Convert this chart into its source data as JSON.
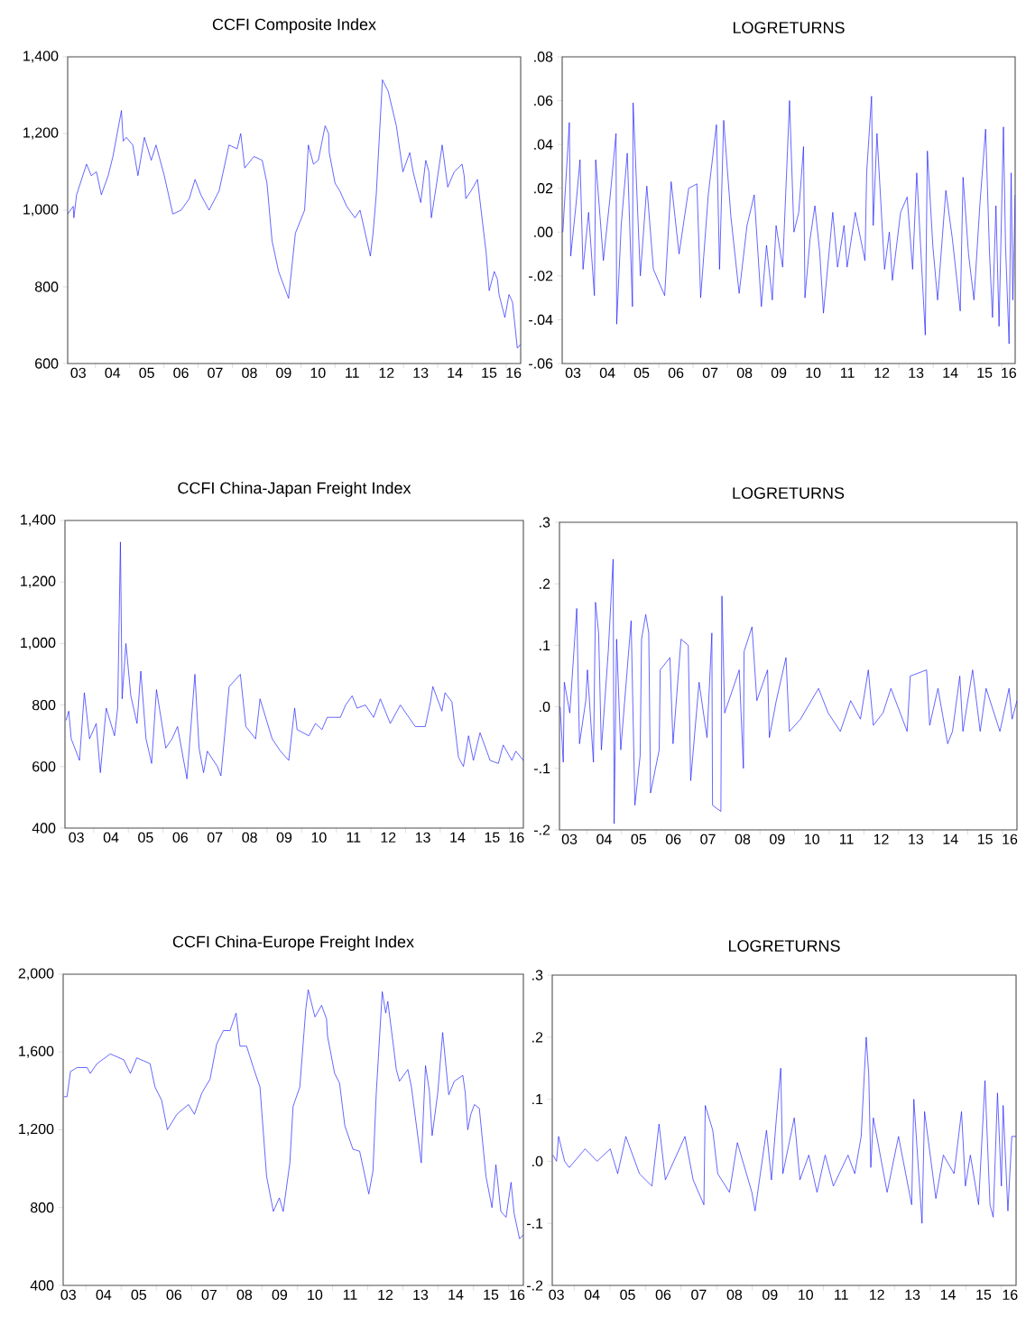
{
  "chart_data": [
    {
      "type": "line",
      "title": "CCFI Composite Index",
      "color": "#1a1aff",
      "xlim": [
        "2003-03-11",
        "2016-06-03"
      ],
      "ylim": [
        600,
        1400
      ],
      "yticks": [
        600,
        800,
        {
          "value": 1000,
          "label": "1,000"
        },
        {
          "value": 1200,
          "label": "1,200"
        },
        {
          "value": 1400,
          "label": "1,400"
        }
      ],
      "xticks": [
        {
          "value": "2003-07-02",
          "label": "03"
        },
        {
          "value": "2004-07-02",
          "label": "04"
        },
        {
          "value": "2005-07-02",
          "label": "05"
        },
        {
          "value": "2006-07-02",
          "label": "06"
        },
        {
          "value": "2007-07-02",
          "label": "07"
        },
        {
          "value": "2008-07-02",
          "label": "08"
        },
        {
          "value": "2009-07-02",
          "label": "09"
        },
        {
          "value": "2010-07-02",
          "label": "10"
        },
        {
          "value": "2011-07-02",
          "label": "11"
        },
        {
          "value": "2012-07-02",
          "label": "12"
        },
        {
          "value": "2013-07-02",
          "label": "13"
        },
        {
          "value": "2014-07-02",
          "label": "14"
        },
        {
          "value": "2015-07-02",
          "label": "15"
        },
        {
          "value": "2016-03-19",
          "label": "16"
        },
        {
          "value": "2004-01-01",
          "label": null
        },
        {
          "value": "2005-01-01",
          "label": null
        },
        {
          "value": "2006-01-01",
          "label": null
        },
        {
          "value": "2007-01-01",
          "label": null
        },
        {
          "value": "2008-01-01",
          "label": null
        },
        {
          "value": "2009-01-01",
          "label": null
        },
        {
          "value": "2010-01-01",
          "label": null
        },
        {
          "value": "2011-01-01",
          "label": null
        },
        {
          "value": "2012-01-01",
          "label": null
        },
        {
          "value": "2013-01-01",
          "label": null
        },
        {
          "value": "2014-01-01",
          "label": null
        },
        {
          "value": "2015-01-01",
          "label": null
        },
        {
          "value": "2016-01-01",
          "label": null
        }
      ],
      "x": [
        "2003-03-11",
        "2003-05-09",
        "2003-05-16",
        "2003-06-14",
        "2003-09-28",
        "2003-11-18",
        "2004-01-12",
        "2004-03-04",
        "2004-05-16",
        "2004-07-06",
        "2004-10-05",
        "2004-10-24",
        "2004-11-26",
        "2005-02-03",
        "2005-03-30",
        "2005-06-07",
        "2005-08-19",
        "2005-10-09",
        "2006-01-05",
        "2006-04-06",
        "2006-07-03",
        "2006-09-28",
        "2006-11-29",
        "2007-01-30",
        "2007-04-28",
        "2007-08-12",
        "2007-11-26",
        "2008-02-21",
        "2008-03-30",
        "2008-05-12",
        "2008-08-19",
        "2008-11-15",
        "2009-01-05",
        "2009-02-28",
        "2009-05-09",
        "2009-08-23",
        "2009-11-04",
        "2010-02-10",
        "2010-03-22",
        "2010-05-16",
        "2010-07-06",
        "2010-09-17",
        "2010-10-24",
        "2010-10-31",
        "2011-01-01",
        "2011-02-21",
        "2011-05-05",
        "2011-08-01",
        "2011-09-24",
        "2011-10-31",
        "2012-01-12",
        "2012-02-10",
        "2012-03-15",
        "2012-05-20",
        "2012-07-21",
        "2012-10-16",
        "2012-12-25",
        "2013-03-08",
        "2013-04-13",
        "2013-07-03",
        "2013-08-26",
        "2013-09-28",
        "2013-10-24",
        "2013-12-14",
        "2014-02-17",
        "2014-04-17",
        "2014-06-25",
        "2014-09-17",
        "2014-10-09",
        "2014-10-27",
        "2014-12-21",
        "2015-02-28",
        "2015-05-31",
        "2015-07-03",
        "2015-08-26",
        "2015-09-28",
        "2015-10-16",
        "2015-12-17",
        "2016-01-30",
        "2016-03-08",
        "2016-04-28",
        "2016-06-03"
      ],
      "values": [
        990,
        1010,
        980,
        1040,
        1120,
        1090,
        1100,
        1040,
        1090,
        1140,
        1260,
        1180,
        1190,
        1170,
        1090,
        1190,
        1130,
        1170,
        1090,
        990,
        1000,
        1030,
        1080,
        1040,
        1000,
        1050,
        1170,
        1160,
        1200,
        1110,
        1140,
        1130,
        1070,
        920,
        840,
        770,
        940,
        1000,
        1170,
        1120,
        1130,
        1220,
        1200,
        1150,
        1070,
        1050,
        1010,
        980,
        1000,
        960,
        880,
        940,
        1040,
        1340,
        1310,
        1220,
        1100,
        1150,
        1100,
        1020,
        1130,
        1100,
        980,
        1060,
        1170,
        1060,
        1100,
        1120,
        1090,
        1030,
        1050,
        1080,
        890,
        790,
        840,
        820,
        780,
        720,
        780,
        760,
        640,
        650
      ]
    },
    {
      "type": "line",
      "title": "LOGRETURNS",
      "color": "#1a1aff",
      "xlim": [
        "2003-03-08",
        "2016-05-23"
      ],
      "ylim": [
        -0.06,
        0.08
      ],
      "yticks": [
        {
          "value": -0.06,
          "label": "-.06"
        },
        {
          "value": -0.04,
          "label": "-.04"
        },
        {
          "value": -0.02,
          "label": "-.02"
        },
        {
          "value": 0,
          "label": ".00"
        },
        {
          "value": 0.02,
          "label": ".02"
        },
        {
          "value": 0.04,
          "label": ".04"
        },
        {
          "value": 0.06,
          "label": ".06"
        },
        {
          "value": 0.08,
          "label": ".08"
        }
      ],
      "xticks": [
        {
          "value": "2003-07-02",
          "label": "03"
        },
        {
          "value": "2004-07-02",
          "label": "04"
        },
        {
          "value": "2005-07-02",
          "label": "05"
        },
        {
          "value": "2006-07-02",
          "label": "06"
        },
        {
          "value": "2007-07-02",
          "label": "07"
        },
        {
          "value": "2008-07-02",
          "label": "08"
        },
        {
          "value": "2009-07-02",
          "label": "09"
        },
        {
          "value": "2010-07-02",
          "label": "10"
        },
        {
          "value": "2011-07-02",
          "label": "11"
        },
        {
          "value": "2012-07-02",
          "label": "12"
        },
        {
          "value": "2013-07-02",
          "label": "13"
        },
        {
          "value": "2014-07-02",
          "label": "14"
        },
        {
          "value": "2015-07-02",
          "label": "15"
        },
        {
          "value": "2016-03-15",
          "label": "16"
        },
        {
          "value": "2004-01-01",
          "label": null
        },
        {
          "value": "2005-01-01",
          "label": null
        },
        {
          "value": "2006-01-01",
          "label": null
        },
        {
          "value": "2007-01-01",
          "label": null
        },
        {
          "value": "2008-01-01",
          "label": null
        },
        {
          "value": "2009-01-01",
          "label": null
        },
        {
          "value": "2010-01-01",
          "label": null
        },
        {
          "value": "2011-01-01",
          "label": null
        },
        {
          "value": "2012-01-01",
          "label": null
        },
        {
          "value": "2013-01-01",
          "label": null
        },
        {
          "value": "2014-01-01",
          "label": null
        },
        {
          "value": "2015-01-01",
          "label": null
        },
        {
          "value": "2016-01-01",
          "label": null
        }
      ],
      "x": [
        "2003-03-15",
        "2003-04-17",
        "2003-05-23",
        "2003-06-07",
        "2003-08-01",
        "2003-09-14",
        "2003-10-16",
        "2003-12-14",
        "2004-02-14",
        "2004-02-28",
        "2004-05-20",
        "2004-07-28",
        "2004-10-02",
        "2004-10-09",
        "2004-11-26",
        "2005-01-30",
        "2005-03-26",
        "2005-04-02",
        "2005-06-18",
        "2005-08-26",
        "2005-11-04",
        "2006-03-04",
        "2006-05-12",
        "2006-08-04",
        "2006-11-15",
        "2007-02-10",
        "2007-03-22",
        "2007-06-11",
        "2007-09-06",
        "2007-10-09",
        "2007-11-22",
        "2008-02-07",
        "2008-05-05",
        "2008-07-28",
        "2008-10-13",
        "2008-12-28",
        "2009-02-21",
        "2009-04-24",
        "2009-06-03",
        "2009-08-12",
        "2009-10-02",
        "2009-10-24",
        "2009-12-10",
        "2010-01-30",
        "2010-03-22",
        "2010-04-06",
        "2010-05-31",
        "2010-07-21",
        "2010-09-10",
        "2010-10-20",
        "2011-01-27",
        "2011-03-19",
        "2011-05-27",
        "2011-06-29",
        "2011-09-24",
        "2012-01-05",
        "2012-01-23",
        "2012-03-15",
        "2012-04-02",
        "2012-05-12",
        "2012-08-01",
        "2012-09-21",
        "2012-10-24",
        "2013-01-19",
        "2013-03-30",
        "2013-05-27",
        "2013-07-10",
        "2013-10-09",
        "2013-10-31",
        "2013-12-28",
        "2014-02-17",
        "2014-05-16",
        "2014-07-24",
        "2014-10-16",
        "2014-11-15",
        "2015-01-12",
        "2015-03-11",
        "2015-05-12",
        "2015-07-13",
        "2015-08-23",
        "2015-09-24",
        "2015-10-31",
        "2015-12-03",
        "2016-01-19",
        "2016-02-10",
        "2016-03-19",
        "2016-04-10",
        "2016-04-28",
        "2016-05-23"
      ],
      "values": [
        0.0,
        0.024,
        0.05,
        -0.011,
        0.012,
        0.033,
        -0.017,
        0.009,
        -0.029,
        0.033,
        -0.013,
        0.015,
        0.045,
        -0.042,
        0.003,
        0.036,
        -0.034,
        0.059,
        -0.02,
        0.021,
        -0.017,
        -0.029,
        0.023,
        -0.01,
        0.02,
        0.022,
        -0.03,
        0.017,
        0.049,
        -0.017,
        0.051,
        0.007,
        -0.028,
        0.003,
        0.017,
        -0.034,
        -0.006,
        -0.031,
        0.003,
        -0.016,
        0.037,
        0.06,
        0.0,
        0.009,
        0.039,
        -0.03,
        -0.003,
        0.012,
        -0.009,
        -0.037,
        0.009,
        -0.016,
        0.003,
        -0.016,
        0.009,
        -0.013,
        0.027,
        0.062,
        0.003,
        0.045,
        -0.017,
        0.0,
        -0.022,
        0.009,
        0.016,
        -0.017,
        0.027,
        -0.047,
        0.037,
        -0.006,
        -0.031,
        0.019,
        -0.003,
        -0.036,
        0.025,
        -0.01,
        -0.031,
        0.012,
        0.047,
        -0.009,
        -0.039,
        0.012,
        -0.043,
        0.048,
        -0.006,
        -0.051,
        0.027,
        -0.031,
        0.017
      ]
    },
    {
      "type": "line",
      "title": "CCFI China-Japan Freight Index",
      "color": "#1a1aff",
      "xlim": [
        "2003-03-04",
        "2016-05-27"
      ],
      "ylim": [
        400,
        1400
      ],
      "yticks": [
        400,
        600,
        800,
        {
          "value": 1000,
          "label": "1,000"
        },
        {
          "value": 1200,
          "label": "1,200"
        },
        {
          "value": 1400,
          "label": "1,400"
        }
      ],
      "xticks": [
        {
          "value": "2003-07-02",
          "label": "03"
        },
        {
          "value": "2004-07-02",
          "label": "04"
        },
        {
          "value": "2005-07-02",
          "label": "05"
        },
        {
          "value": "2006-07-02",
          "label": "06"
        },
        {
          "value": "2007-07-02",
          "label": "07"
        },
        {
          "value": "2008-07-02",
          "label": "08"
        },
        {
          "value": "2009-07-02",
          "label": "09"
        },
        {
          "value": "2010-07-02",
          "label": "10"
        },
        {
          "value": "2011-07-02",
          "label": "11"
        },
        {
          "value": "2012-07-02",
          "label": "12"
        },
        {
          "value": "2013-07-02",
          "label": "13"
        },
        {
          "value": "2014-07-02",
          "label": "14"
        },
        {
          "value": "2015-07-02",
          "label": "15"
        },
        {
          "value": "2016-03-15",
          "label": "16"
        },
        {
          "value": "2004-01-01",
          "label": null
        },
        {
          "value": "2005-01-01",
          "label": null
        },
        {
          "value": "2006-01-01",
          "label": null
        },
        {
          "value": "2007-01-01",
          "label": null
        },
        {
          "value": "2008-01-01",
          "label": null
        },
        {
          "value": "2009-01-01",
          "label": null
        },
        {
          "value": "2010-01-01",
          "label": null
        },
        {
          "value": "2011-01-01",
          "label": null
        },
        {
          "value": "2012-01-01",
          "label": null
        },
        {
          "value": "2013-01-01",
          "label": null
        },
        {
          "value": "2014-01-01",
          "label": null
        },
        {
          "value": "2015-01-01",
          "label": null
        },
        {
          "value": "2016-01-01",
          "label": null
        }
      ],
      "x": [
        "2003-03-15",
        "2003-04-13",
        "2003-05-09",
        "2003-08-04",
        "2003-09-24",
        "2003-11-18",
        "2004-01-27",
        "2004-03-11",
        "2004-05-12",
        "2004-08-08",
        "2004-09-10",
        "2004-10-09",
        "2004-10-27",
        "2004-12-06",
        "2005-01-27",
        "2005-04-02",
        "2005-05-12",
        "2005-07-06",
        "2005-09-03",
        "2005-10-24",
        "2006-01-30",
        "2006-04-06",
        "2006-06-03",
        "2006-09-10",
        "2006-12-03",
        "2007-01-16",
        "2007-03-04",
        "2007-04-13",
        "2007-07-28",
        "2007-09-03",
        "2007-11-29",
        "2008-03-26",
        "2008-05-23",
        "2008-09-03",
        "2008-10-20",
        "2009-02-25",
        "2009-05-23",
        "2009-08-19",
        "2009-10-20",
        "2009-11-15",
        "2010-03-19",
        "2010-05-27",
        "2010-08-04",
        "2010-09-28",
        "2011-02-14",
        "2011-04-10",
        "2011-06-18",
        "2011-08-08",
        "2011-11-04",
        "2012-01-30",
        "2012-04-10",
        "2012-07-24",
        "2012-11-07",
        "2013-04-13",
        "2013-07-28",
        "2013-09-21",
        "2013-10-16",
        "2014-01-19",
        "2014-02-21",
        "2014-05-05",
        "2014-07-13",
        "2014-09-03",
        "2014-10-27",
        "2014-12-17",
        "2015-02-25",
        "2015-06-11",
        "2015-09-06",
        "2015-10-27",
        "2016-01-27",
        "2016-03-08",
        "2016-05-27"
      ],
      "values": [
        750,
        780,
        690,
        620,
        840,
        690,
        740,
        580,
        790,
        700,
        790,
        1330,
        820,
        1000,
        830,
        740,
        910,
        690,
        610,
        850,
        660,
        690,
        730,
        560,
        900,
        660,
        580,
        650,
        600,
        570,
        860,
        900,
        730,
        690,
        820,
        690,
        650,
        620,
        790,
        720,
        700,
        740,
        720,
        760,
        760,
        800,
        830,
        790,
        800,
        760,
        820,
        740,
        800,
        730,
        730,
        810,
        860,
        780,
        840,
        810,
        630,
        600,
        700,
        620,
        710,
        620,
        610,
        670,
        620,
        650,
        620
      ]
    },
    {
      "type": "line",
      "title": "LOGRETURNS",
      "color": "#1a1aff",
      "xlim": [
        "2003-03-19",
        "2016-06-03"
      ],
      "ylim": [
        -0.2,
        0.3
      ],
      "yticks": [
        {
          "value": -0.2,
          "label": "-.2"
        },
        {
          "value": -0.1,
          "label": "-.1"
        },
        {
          "value": 0,
          "label": ".0"
        },
        {
          "value": 0.1,
          "label": ".1"
        },
        {
          "value": 0.2,
          "label": ".2"
        },
        {
          "value": 0.3,
          "label": ".3"
        }
      ],
      "xticks": [
        {
          "value": "2003-07-02",
          "label": "03"
        },
        {
          "value": "2004-07-02",
          "label": "04"
        },
        {
          "value": "2005-07-02",
          "label": "05"
        },
        {
          "value": "2006-07-02",
          "label": "06"
        },
        {
          "value": "2007-07-02",
          "label": "07"
        },
        {
          "value": "2008-07-02",
          "label": "08"
        },
        {
          "value": "2009-07-02",
          "label": "09"
        },
        {
          "value": "2010-07-02",
          "label": "10"
        },
        {
          "value": "2011-07-02",
          "label": "11"
        },
        {
          "value": "2012-07-02",
          "label": "12"
        },
        {
          "value": "2013-07-02",
          "label": "13"
        },
        {
          "value": "2014-07-02",
          "label": "14"
        },
        {
          "value": "2015-07-02",
          "label": "15"
        },
        {
          "value": "2016-03-19",
          "label": "16"
        },
        {
          "value": "2004-01-01",
          "label": null
        },
        {
          "value": "2005-01-01",
          "label": null
        },
        {
          "value": "2006-01-01",
          "label": null
        },
        {
          "value": "2007-01-01",
          "label": null
        },
        {
          "value": "2008-01-01",
          "label": null
        },
        {
          "value": "2009-01-01",
          "label": null
        },
        {
          "value": "2010-01-01",
          "label": null
        },
        {
          "value": "2011-01-01",
          "label": null
        },
        {
          "value": "2012-01-01",
          "label": null
        },
        {
          "value": "2013-01-01",
          "label": null
        },
        {
          "value": "2014-01-01",
          "label": null
        },
        {
          "value": "2015-01-01",
          "label": null
        },
        {
          "value": "2016-01-01",
          "label": null
        }
      ],
      "x": [
        "2003-03-26",
        "2003-04-28",
        "2003-05-09",
        "2003-07-06",
        "2003-09-17",
        "2003-10-16",
        "2003-12-21",
        "2004-01-08",
        "2004-03-11",
        "2004-04-02",
        "2004-05-05",
        "2004-06-03",
        "2004-08-15",
        "2004-10-05",
        "2004-10-16",
        "2004-11-11",
        "2004-12-25",
        "2005-04-13",
        "2005-05-23",
        "2005-07-17",
        "2005-08-01",
        "2005-09-14",
        "2005-10-16",
        "2005-11-04",
        "2006-02-03",
        "2006-02-14",
        "2006-05-27",
        "2006-06-29",
        "2006-09-21",
        "2006-12-06",
        "2007-01-01",
        "2007-03-30",
        "2007-06-22",
        "2007-08-12",
        "2007-08-19",
        "2007-11-15",
        "2007-11-26",
        "2007-12-25",
        "2008-05-27",
        "2008-07-10",
        "2008-07-17",
        "2008-10-09",
        "2008-11-29",
        "2009-03-22",
        "2009-04-10",
        "2009-06-22",
        "2009-10-02",
        "2009-11-07",
        "2010-03-04",
        "2010-09-10",
        "2010-12-21",
        "2011-04-28",
        "2011-08-15",
        "2011-11-26",
        "2012-02-17",
        "2012-04-10",
        "2012-07-21",
        "2012-10-13",
        "2013-04-02",
        "2013-05-05",
        "2013-10-24",
        "2013-11-26",
        "2014-02-21",
        "2014-06-03",
        "2014-07-24",
        "2014-10-09",
        "2014-11-11",
        "2015-02-21",
        "2015-05-12",
        "2015-07-13",
        "2015-12-06",
        "2016-03-11",
        "2016-04-13",
        "2016-06-03"
      ],
      "values": [
        0,
        -0.09,
        0.04,
        -0.01,
        0.16,
        -0.06,
        0.01,
        0.06,
        -0.09,
        0.17,
        0.12,
        -0.07,
        0.09,
        0.24,
        -0.19,
        0.11,
        -0.07,
        0.14,
        -0.16,
        -0.08,
        0.11,
        0.15,
        0.12,
        -0.14,
        -0.07,
        0.06,
        0.08,
        -0.06,
        0.11,
        0.1,
        -0.12,
        0.04,
        -0.05,
        0.12,
        -0.16,
        -0.17,
        0.18,
        -0.01,
        0.06,
        -0.1,
        0.09,
        0.13,
        0.01,
        0.06,
        -0.05,
        0.01,
        0.08,
        -0.04,
        -0.02,
        0.03,
        -0.01,
        -0.04,
        0.01,
        -0.02,
        0.06,
        -0.03,
        -0.01,
        0.03,
        -0.04,
        0.05,
        0.06,
        -0.03,
        0.03,
        -0.06,
        -0.04,
        0.05,
        -0.04,
        0.06,
        -0.04,
        0.03,
        -0.04,
        0.03,
        -0.02,
        0.01
      ]
    },
    {
      "type": "line",
      "title": "CCFI China-Europe Freight Index",
      "color": "#1a1aff",
      "xlim": [
        "2003-05-09",
        "2016-06-03"
      ],
      "ylim": [
        400,
        2000
      ],
      "yticks": [
        400,
        800,
        {
          "value": 1200,
          "label": "1,200"
        },
        {
          "value": 1600,
          "label": "1,600"
        },
        {
          "value": 2000,
          "label": "2,000"
        }
      ],
      "xticks": [
        {
          "value": "2003-07-02",
          "label": "03"
        },
        {
          "value": "2004-07-02",
          "label": "04"
        },
        {
          "value": "2005-07-02",
          "label": "05"
        },
        {
          "value": "2006-07-02",
          "label": "06"
        },
        {
          "value": "2007-07-02",
          "label": "07"
        },
        {
          "value": "2008-07-02",
          "label": "08"
        },
        {
          "value": "2009-07-02",
          "label": "09"
        },
        {
          "value": "2010-07-02",
          "label": "10"
        },
        {
          "value": "2011-07-02",
          "label": "11"
        },
        {
          "value": "2012-07-02",
          "label": "12"
        },
        {
          "value": "2013-07-02",
          "label": "13"
        },
        {
          "value": "2014-07-02",
          "label": "14"
        },
        {
          "value": "2015-07-02",
          "label": "15"
        },
        {
          "value": "2016-03-30",
          "label": "16"
        },
        {
          "value": "2004-01-01",
          "label": null
        },
        {
          "value": "2005-01-01",
          "label": null
        },
        {
          "value": "2006-01-01",
          "label": null
        },
        {
          "value": "2007-01-01",
          "label": null
        },
        {
          "value": "2008-01-01",
          "label": null
        },
        {
          "value": "2009-01-01",
          "label": null
        },
        {
          "value": "2010-01-01",
          "label": null
        },
        {
          "value": "2011-01-01",
          "label": null
        },
        {
          "value": "2012-01-01",
          "label": null
        },
        {
          "value": "2013-01-01",
          "label": null
        },
        {
          "value": "2014-01-01",
          "label": null
        },
        {
          "value": "2015-01-01",
          "label": null
        },
        {
          "value": "2016-01-01",
          "label": null
        }
      ],
      "x": [
        "2003-05-16",
        "2003-06-18",
        "2003-07-24",
        "2003-10-02",
        "2004-01-12",
        "2004-02-14",
        "2004-04-24",
        "2004-09-10",
        "2005-01-27",
        "2005-04-06",
        "2005-06-11",
        "2005-10-27",
        "2005-12-17",
        "2006-02-25",
        "2006-04-24",
        "2006-08-01",
        "2006-11-29",
        "2007-01-30",
        "2007-04-17",
        "2007-07-10",
        "2007-09-17",
        "2007-11-26",
        "2008-02-03",
        "2008-04-06",
        "2008-05-16",
        "2008-07-24",
        "2008-10-02",
        "2008-12-10",
        "2009-02-17",
        "2009-04-28",
        "2009-06-29",
        "2009-08-08",
        "2009-10-16",
        "2009-11-18",
        "2010-01-27",
        "2010-03-30",
        "2010-04-24",
        "2010-07-03",
        "2010-09-10",
        "2010-10-31",
        "2010-11-11",
        "2011-01-23",
        "2011-03-15",
        "2011-05-09",
        "2011-08-01",
        "2011-10-09",
        "2012-01-12",
        "2012-02-25",
        "2012-03-30",
        "2012-05-31",
        "2012-07-06",
        "2012-07-28",
        "2012-10-05",
        "2012-10-24",
        "2012-11-26",
        "2013-02-21",
        "2013-03-30",
        "2013-07-10",
        "2013-08-23",
        "2013-10-02",
        "2013-10-31",
        "2013-12-28",
        "2014-02-17",
        "2014-04-21",
        "2014-06-18",
        "2014-09-14",
        "2014-10-09",
        "2014-11-04",
        "2014-12-06",
        "2015-01-12",
        "2015-03-04",
        "2015-05-12",
        "2015-07-13",
        "2015-08-23",
        "2015-10-13",
        "2015-12-06",
        "2016-01-27",
        "2016-02-28",
        "2016-04-24",
        "2016-06-03"
      ],
      "values": [
        1370,
        1370,
        1500,
        1520,
        1520,
        1490,
        1540,
        1590,
        1560,
        1490,
        1570,
        1540,
        1420,
        1350,
        1200,
        1280,
        1330,
        1280,
        1390,
        1460,
        1640,
        1710,
        1710,
        1800,
        1630,
        1630,
        1520,
        1420,
        960,
        780,
        850,
        780,
        1030,
        1320,
        1420,
        1820,
        1920,
        1780,
        1840,
        1770,
        1680,
        1490,
        1440,
        1220,
        1100,
        1090,
        870,
        990,
        1390,
        1910,
        1800,
        1860,
        1590,
        1510,
        1450,
        1510,
        1420,
        1030,
        1530,
        1400,
        1170,
        1390,
        1700,
        1380,
        1450,
        1480,
        1390,
        1200,
        1280,
        1330,
        1310,
        960,
        800,
        1020,
        780,
        750,
        930,
        770,
        640,
        660
      ]
    },
    {
      "type": "line",
      "title": "LOGRETURNS",
      "color": "#1a1aff",
      "xlim": [
        "2003-05-20",
        "2016-05-31"
      ],
      "ylim": [
        -0.2,
        0.3
      ],
      "yticks": [
        {
          "value": -0.2,
          "label": "-.2"
        },
        {
          "value": -0.1,
          "label": "-.1"
        },
        {
          "value": 0,
          "label": ".0"
        },
        {
          "value": 0.1,
          "label": ".1"
        },
        {
          "value": 0.2,
          "label": ".2"
        },
        {
          "value": 0.3,
          "label": ".3"
        }
      ],
      "xticks": [
        {
          "value": "2003-07-02",
          "label": "03"
        },
        {
          "value": "2004-07-02",
          "label": "04"
        },
        {
          "value": "2005-07-02",
          "label": "05"
        },
        {
          "value": "2006-07-02",
          "label": "06"
        },
        {
          "value": "2007-07-02",
          "label": "07"
        },
        {
          "value": "2008-07-02",
          "label": "08"
        },
        {
          "value": "2009-07-02",
          "label": "09"
        },
        {
          "value": "2010-07-02",
          "label": "10"
        },
        {
          "value": "2011-07-02",
          "label": "11"
        },
        {
          "value": "2012-07-02",
          "label": "12"
        },
        {
          "value": "2013-07-02",
          "label": "13"
        },
        {
          "value": "2014-07-02",
          "label": "14"
        },
        {
          "value": "2015-07-02",
          "label": "15"
        },
        {
          "value": "2016-03-30",
          "label": "16"
        },
        {
          "value": "2004-01-01",
          "label": null
        },
        {
          "value": "2005-01-01",
          "label": null
        },
        {
          "value": "2006-01-01",
          "label": null
        },
        {
          "value": "2007-01-01",
          "label": null
        },
        {
          "value": "2008-01-01",
          "label": null
        },
        {
          "value": "2009-01-01",
          "label": null
        },
        {
          "value": "2010-01-01",
          "label": null
        },
        {
          "value": "2011-01-01",
          "label": null
        },
        {
          "value": "2012-01-01",
          "label": null
        },
        {
          "value": "2013-01-01",
          "label": null
        },
        {
          "value": "2014-01-01",
          "label": null
        },
        {
          "value": "2015-01-01",
          "label": null
        },
        {
          "value": "2016-01-01",
          "label": null
        }
      ],
      "x": [
        "2003-05-27",
        "2003-07-03",
        "2003-07-24",
        "2003-09-24",
        "2003-11-11",
        "2004-04-21",
        "2004-08-23",
        "2005-01-05",
        "2005-03-22",
        "2005-06-14",
        "2005-10-31",
        "2006-03-08",
        "2006-05-20",
        "2006-07-24",
        "2007-02-10",
        "2007-05-05",
        "2007-08-23",
        "2007-09-06",
        "2007-11-22",
        "2008-01-12",
        "2008-05-12",
        "2008-08-01",
        "2008-12-28",
        "2009-01-30",
        "2009-05-27",
        "2009-07-17",
        "2009-09-06",
        "2009-10-20",
        "2009-11-11",
        "2010-03-08",
        "2010-05-05",
        "2010-08-04",
        "2010-10-27",
        "2011-01-19",
        "2011-04-13",
        "2011-09-10",
        "2011-11-18",
        "2012-01-23",
        "2012-03-15",
        "2012-04-10",
        "2012-05-01",
        "2012-05-27",
        "2012-10-16",
        "2013-02-10",
        "2013-06-25",
        "2013-07-17",
        "2013-10-09",
        "2013-11-04",
        "2014-02-28",
        "2014-05-16",
        "2014-09-03",
        "2014-11-18",
        "2014-12-28",
        "2015-02-17",
        "2015-05-12",
        "2015-07-17",
        "2015-09-06",
        "2015-10-09",
        "2015-11-22",
        "2016-01-01",
        "2016-01-19",
        "2016-03-08",
        "2016-04-17",
        "2016-05-31"
      ],
      "values": [
        0.01,
        0,
        0.04,
        0,
        -0.01,
        0.02,
        0,
        0.02,
        -0.02,
        0.04,
        -0.02,
        -0.04,
        0.06,
        -0.03,
        0.04,
        -0.03,
        -0.07,
        0.09,
        0.05,
        -0.02,
        -0.05,
        0.03,
        -0.05,
        -0.08,
        0.05,
        -0.03,
        0.07,
        0.15,
        -0.02,
        0.07,
        -0.03,
        0.01,
        -0.05,
        0.01,
        -0.04,
        0.01,
        -0.02,
        0.04,
        0.2,
        0.14,
        -0.01,
        0.07,
        -0.05,
        0.04,
        -0.07,
        0.1,
        -0.1,
        0.08,
        -0.06,
        0.01,
        -0.02,
        0.08,
        -0.04,
        0.01,
        -0.07,
        0.13,
        -0.07,
        -0.09,
        0.11,
        -0.04,
        0.09,
        -0.08,
        0.04,
        0.04
      ]
    }
  ]
}
